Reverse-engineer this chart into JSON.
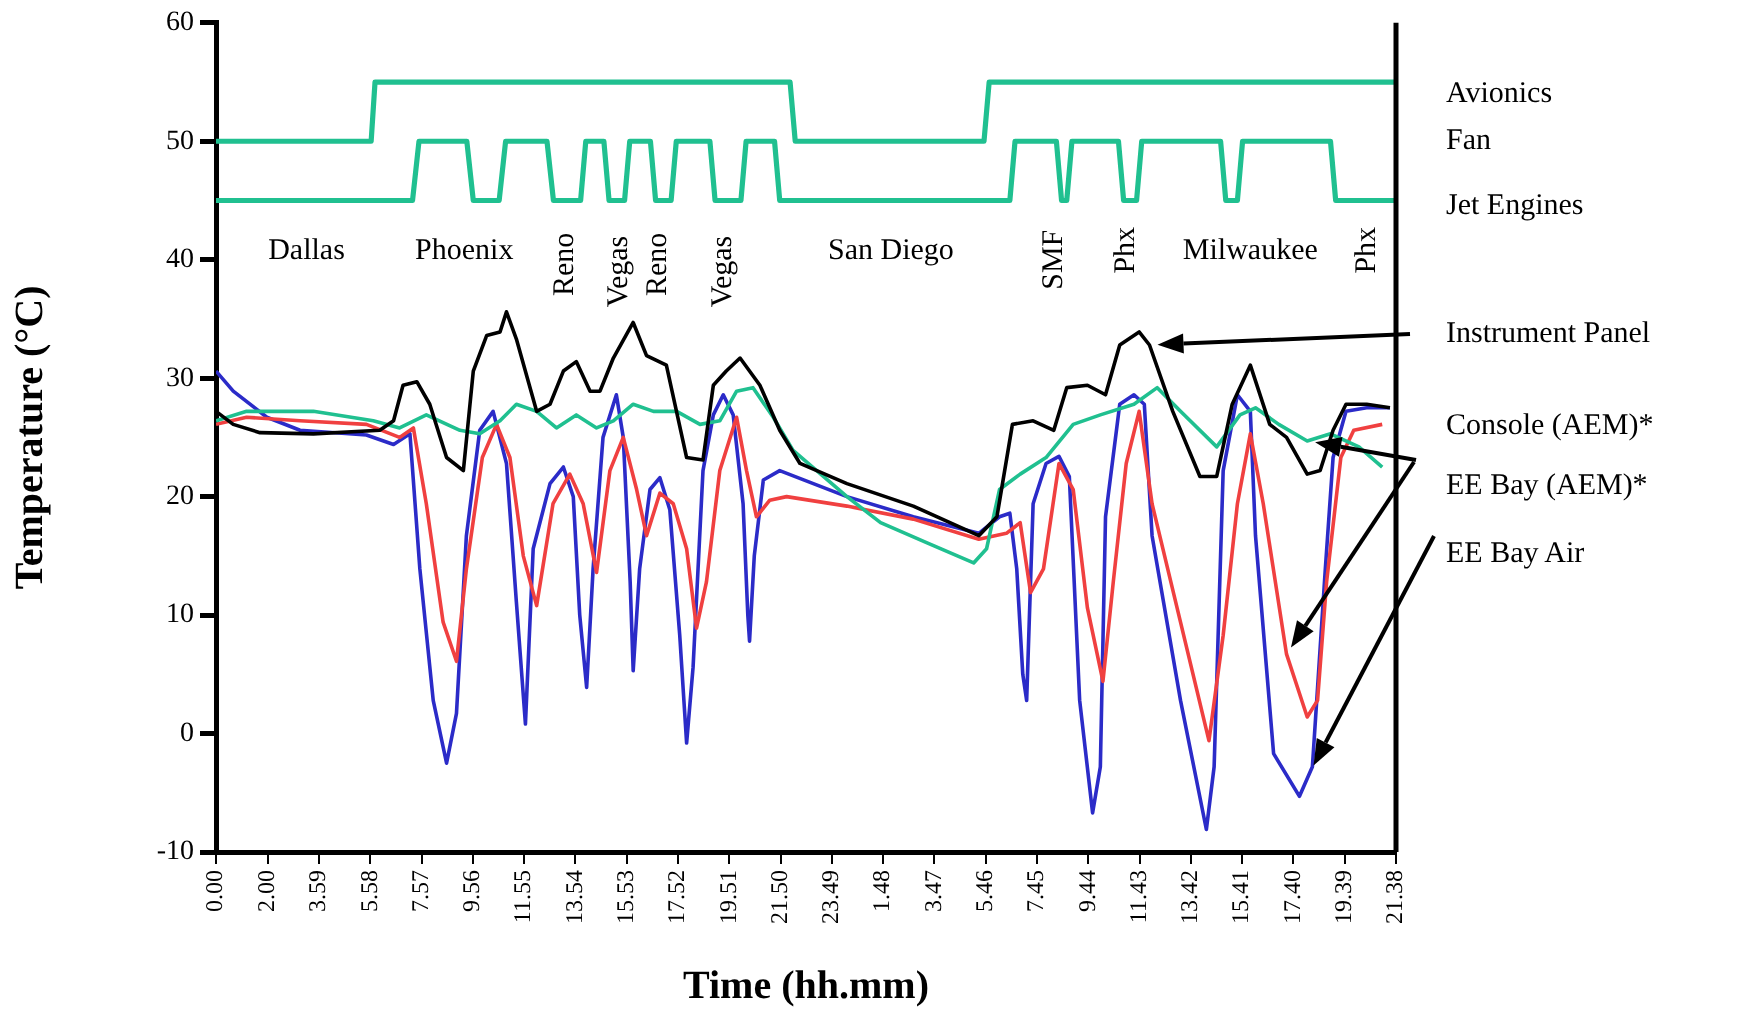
{
  "chart_data": {
    "type": "line",
    "xlabel": "Time (hh.mm)",
    "ylabel": "Temperature (°C)",
    "marker": "none",
    "xlim": [
      "2000-01-01T00:00",
      "2000-01-02T21:38"
    ],
    "ylim": [
      -10,
      60
    ],
    "yticks": [
      -10,
      0,
      10,
      20,
      30,
      40,
      50,
      60
    ],
    "xticks": [
      {
        "value": "2000-01-01T00:00",
        "label": "0.00"
      },
      {
        "value": "2000-01-01T02:00",
        "label": "2.00"
      },
      {
        "value": "2000-01-01T03:59",
        "label": "3.59"
      },
      {
        "value": "2000-01-01T05:58",
        "label": "5.58"
      },
      {
        "value": "2000-01-01T07:57",
        "label": "7.57"
      },
      {
        "value": "2000-01-01T09:56",
        "label": "9.56"
      },
      {
        "value": "2000-01-01T11:55",
        "label": "11.55"
      },
      {
        "value": "2000-01-01T13:54",
        "label": "13.54"
      },
      {
        "value": "2000-01-01T15:53",
        "label": "15.53"
      },
      {
        "value": "2000-01-01T17:52",
        "label": "17.52"
      },
      {
        "value": "2000-01-01T19:51",
        "label": "19.51"
      },
      {
        "value": "2000-01-01T21:50",
        "label": "21.50"
      },
      {
        "value": "2000-01-01T23:49",
        "label": "23.49"
      },
      {
        "value": "2000-01-02T01:48",
        "label": "1.48"
      },
      {
        "value": "2000-01-02T03:47",
        "label": "3.47"
      },
      {
        "value": "2000-01-02T05:46",
        "label": "5.46"
      },
      {
        "value": "2000-01-02T07:45",
        "label": "7.45"
      },
      {
        "value": "2000-01-02T09:44",
        "label": "9.44"
      },
      {
        "value": "2000-01-02T11:43",
        "label": "11.43"
      },
      {
        "value": "2000-01-02T13:42",
        "label": "13.42"
      },
      {
        "value": "2000-01-02T15:41",
        "label": "15.41"
      },
      {
        "value": "2000-01-02T17:40",
        "label": "17.40"
      },
      {
        "value": "2000-01-02T19:39",
        "label": "19.39"
      },
      {
        "value": "2000-01-02T21:38",
        "label": "21.38"
      }
    ],
    "series": [
      {
        "type": "line",
        "color": "#20c090",
        "x": [
          "2000-01-01T00:00",
          "2000-01-01T06:00",
          "2000-01-01T06:09",
          "2000-01-01T22:12",
          "2000-01-01T22:24",
          "2000-01-02T05:42",
          "2000-01-02T05:54",
          "2000-01-02T21:38"
        ],
        "values": [
          50,
          50,
          55,
          55,
          50,
          50,
          55,
          55
        ]
      },
      {
        "type": "line",
        "color": "#20c090",
        "x": [
          "2000-01-01T00:00",
          "2000-01-01T07:36",
          "2000-01-01T07:51",
          "2000-01-01T09:42",
          "2000-01-01T09:57",
          "2000-01-01T10:57",
          "2000-01-01T11:12",
          "2000-01-01T12:48",
          "2000-01-01T13:03",
          "2000-01-01T14:06",
          "2000-01-01T14:18",
          "2000-01-01T15:00",
          "2000-01-01T15:12",
          "2000-01-01T15:48",
          "2000-01-01T16:00",
          "2000-01-01T16:48",
          "2000-01-01T17:00",
          "2000-01-01T17:36",
          "2000-01-01T17:48",
          "2000-01-01T19:06",
          "2000-01-01T19:18",
          "2000-01-01T20:18",
          "2000-01-01T20:30",
          "2000-01-01T21:36",
          "2000-01-01T21:48",
          "2000-01-02T06:42",
          "2000-01-02T06:54",
          "2000-01-02T08:30",
          "2000-01-02T08:42",
          "2000-01-02T08:54",
          "2000-01-02T09:06",
          "2000-01-02T10:54",
          "2000-01-02T11:06",
          "2000-01-02T11:36",
          "2000-01-02T11:48",
          "2000-01-02T14:51",
          "2000-01-02T15:03",
          "2000-01-02T15:30",
          "2000-01-02T15:42",
          "2000-01-02T19:06",
          "2000-01-02T19:18",
          "2000-01-02T21:38"
        ],
        "values": [
          45,
          45,
          50,
          50,
          45,
          45,
          50,
          50,
          45,
          45,
          50,
          50,
          45,
          45,
          50,
          50,
          45,
          45,
          50,
          50,
          45,
          45,
          50,
          50,
          45,
          45,
          50,
          50,
          45,
          45,
          50,
          50,
          45,
          45,
          50,
          50,
          45,
          45,
          50,
          50,
          45,
          45
        ]
      },
      {
        "name": "Instrument Panel",
        "color": "#000000",
        "x": [
          "2000-01-01T00:00",
          "2000-01-01T00:40",
          "2000-01-01T01:42",
          "2000-01-01T03:46",
          "2000-01-01T06:20",
          "2000-01-01T06:52",
          "2000-01-01T07:14",
          "2000-01-01T07:46",
          "2000-01-01T08:16",
          "2000-01-01T08:55",
          "2000-01-01T09:34",
          "2000-01-01T09:57",
          "2000-01-01T10:28",
          "2000-01-01T10:59",
          "2000-01-01T11:14",
          "2000-01-01T11:37",
          "2000-01-01T12:24",
          "2000-01-01T12:55",
          "2000-01-01T13:26",
          "2000-01-01T13:56",
          "2000-01-01T14:28",
          "2000-01-01T14:51",
          "2000-01-01T15:22",
          "2000-01-01T16:08",
          "2000-01-01T16:39",
          "2000-01-01T17:25",
          "2000-01-01T18:12",
          "2000-01-01T18:50",
          "2000-01-01T19:14",
          "2000-01-01T19:44",
          "2000-01-01T20:16",
          "2000-01-01T21:02",
          "2000-01-01T21:48",
          "2000-01-01T22:35",
          "2000-01-02T00:24",
          "2000-01-02T02:58",
          "2000-01-02T05:30",
          "2000-01-02T06:12",
          "2000-01-02T06:48",
          "2000-01-02T07:36",
          "2000-01-02T08:24",
          "2000-01-02T08:54",
          "2000-01-02T09:42",
          "2000-01-02T10:24",
          "2000-01-02T10:57",
          "2000-01-02T11:42",
          "2000-01-02T12:06",
          "2000-01-02T13:00",
          "2000-01-02T14:03",
          "2000-01-02T14:42",
          "2000-01-02T15:18",
          "2000-01-02T16:00",
          "2000-01-02T16:45",
          "2000-01-02T17:24",
          "2000-01-02T18:12",
          "2000-01-02T18:42",
          "2000-01-02T19:12",
          "2000-01-02T19:42",
          "2000-01-02T20:30",
          "2000-01-02T21:24"
        ],
        "values": [
          27.2,
          26.1,
          25.4,
          25.3,
          25.6,
          26.4,
          29.4,
          29.7,
          27.8,
          23.3,
          22.2,
          30.6,
          33.6,
          33.9,
          35.6,
          33.3,
          27.2,
          27.8,
          30.6,
          31.4,
          28.9,
          28.9,
          31.7,
          34.7,
          31.9,
          31.1,
          23.3,
          23.1,
          29.4,
          30.6,
          31.7,
          29.4,
          25.6,
          22.8,
          21.1,
          19.2,
          16.7,
          18.3,
          26.1,
          26.4,
          25.6,
          29.2,
          29.4,
          28.6,
          32.8,
          33.9,
          32.8,
          27.2,
          21.7,
          21.7,
          27.8,
          31.1,
          26.1,
          25,
          21.9,
          22.2,
          25.6,
          27.8,
          27.8,
          27.5
        ]
      },
      {
        "name": "Console (AEM)*",
        "color": "#20c090",
        "x": [
          "2000-01-01T00:00",
          "2000-01-01T01:11",
          "2000-01-01T03:46",
          "2000-01-01T06:05",
          "2000-01-01T07:06",
          "2000-01-01T08:08",
          "2000-01-01T09:26",
          "2000-01-01T10:12",
          "2000-01-01T10:59",
          "2000-01-01T11:37",
          "2000-01-01T12:24",
          "2000-01-01T13:10",
          "2000-01-01T13:56",
          "2000-01-01T14:43",
          "2000-01-01T15:22",
          "2000-01-01T16:08",
          "2000-01-01T16:55",
          "2000-01-01T17:49",
          "2000-01-01T18:43",
          "2000-01-01T19:29",
          "2000-01-01T20:08",
          "2000-01-01T20:46",
          "2000-01-01T21:33",
          "2000-01-01T22:19",
          "2000-01-02T00:24",
          "2000-01-02T01:42",
          "2000-01-02T03:30",
          "2000-01-02T05:18",
          "2000-01-02T05:48",
          "2000-01-02T06:18",
          "2000-01-02T07:06",
          "2000-01-02T08:06",
          "2000-01-02T09:09",
          "2000-01-02T10:12",
          "2000-01-02T11:30",
          "2000-01-02T12:24",
          "2000-01-02T13:18",
          "2000-01-02T14:42",
          "2000-01-02T15:36",
          "2000-01-02T16:12",
          "2000-01-02T17:06",
          "2000-01-02T18:12",
          "2000-01-02T19:06",
          "2000-01-02T20:12",
          "2000-01-02T21:06"
        ],
        "values": [
          26.4,
          27.2,
          27.2,
          26.4,
          25.8,
          26.9,
          25.6,
          25.3,
          26.4,
          27.8,
          27.2,
          25.8,
          26.9,
          25.8,
          26.4,
          27.8,
          27.2,
          27.2,
          26.1,
          26.4,
          28.9,
          29.2,
          26.7,
          23.9,
          20,
          17.8,
          16.1,
          14.4,
          15.6,
          20.6,
          21.9,
          23.3,
          26.1,
          26.9,
          27.8,
          29.2,
          27.2,
          24.2,
          26.9,
          27.5,
          26.1,
          24.7,
          25.3,
          24.2,
          22.5
        ]
      },
      {
        "name": "EE Bay (AEM)*",
        "color": "#f04040",
        "x": [
          "2000-01-01T00:00",
          "2000-01-01T01:11",
          "2000-01-01T03:15",
          "2000-01-01T05:49",
          "2000-01-01T07:06",
          "2000-01-01T07:38",
          "2000-01-01T08:08",
          "2000-01-01T08:47",
          "2000-01-01T09:18",
          "2000-01-01T09:41",
          "2000-01-01T10:18",
          "2000-01-01T10:51",
          "2000-01-01T11:22",
          "2000-01-01T11:53",
          "2000-01-01T12:24",
          "2000-01-01T13:02",
          "2000-01-01T13:41",
          "2000-01-01T14:12",
          "2000-01-01T14:43",
          "2000-01-01T15:14",
          "2000-01-01T15:45",
          "2000-01-01T16:16",
          "2000-01-01T16:39",
          "2000-01-01T17:10",
          "2000-01-01T17:41",
          "2000-01-01T18:12",
          "2000-01-01T18:35",
          "2000-01-01T18:58",
          "2000-01-01T19:29",
          "2000-01-01T20:08",
          "2000-01-01T20:31",
          "2000-01-01T20:54",
          "2000-01-01T21:25",
          "2000-01-01T22:04",
          "2000-01-02T00:24",
          "2000-01-02T02:58",
          "2000-01-02T05:30",
          "2000-01-02T06:34",
          "2000-01-02T07:06",
          "2000-01-02T07:30",
          "2000-01-02T08:00",
          "2000-01-02T08:36",
          "2000-01-02T09:09",
          "2000-01-02T09:42",
          "2000-01-02T10:18",
          "2000-01-02T10:42",
          "2000-01-02T11:12",
          "2000-01-02T11:42",
          "2000-01-02T12:12",
          "2000-01-02T13:18",
          "2000-01-02T14:24",
          "2000-01-02T14:57",
          "2000-01-02T15:30",
          "2000-01-02T16:00",
          "2000-01-02T16:30",
          "2000-01-02T17:24",
          "2000-01-02T18:12",
          "2000-01-02T18:36",
          "2000-01-02T18:57",
          "2000-01-02T19:30",
          "2000-01-02T20:00",
          "2000-01-02T21:06"
        ],
        "values": [
          26.1,
          26.7,
          26.4,
          26.1,
          25,
          25.8,
          19.4,
          9.4,
          6.1,
          13.9,
          23.3,
          26.1,
          23.3,
          15,
          10.8,
          19.4,
          21.9,
          19.4,
          13.6,
          22.2,
          25,
          20.6,
          16.7,
          20.3,
          19.4,
          15.6,
          8.9,
          12.8,
          22.2,
          26.7,
          22.2,
          18.3,
          19.7,
          20,
          19.2,
          18.1,
          16.4,
          16.9,
          17.8,
          11.9,
          13.9,
          22.8,
          20.6,
          10.6,
          4.4,
          12.8,
          22.8,
          27.2,
          19.4,
          9.4,
          -0.6,
          8.3,
          19.4,
          25.3,
          19.4,
          6.7,
          1.4,
          2.8,
          12.8,
          23.3,
          25.6,
          26.1
        ]
      },
      {
        "name": "EE Bay Air",
        "color": "#2b2bc8",
        "x": [
          "2000-01-01T00:00",
          "2000-01-01T00:40",
          "2000-01-01T01:58",
          "2000-01-01T03:15",
          "2000-01-01T05:49",
          "2000-01-01T06:52",
          "2000-01-01T07:30",
          "2000-01-01T07:53",
          "2000-01-01T08:24",
          "2000-01-01T08:55",
          "2000-01-01T09:18",
          "2000-01-01T09:41",
          "2000-01-01T10:12",
          "2000-01-01T10:43",
          "2000-01-01T11:14",
          "2000-01-01T11:37",
          "2000-01-01T11:58",
          "2000-01-01T12:16",
          "2000-01-01T12:55",
          "2000-01-01T13:26",
          "2000-01-01T13:49",
          "2000-01-01T14:04",
          "2000-01-01T14:20",
          "2000-01-01T14:35",
          "2000-01-01T14:58",
          "2000-01-01T15:29",
          "2000-01-01T15:45",
          "2000-01-01T16:01",
          "2000-01-01T16:08",
          "2000-01-01T16:23",
          "2000-01-01T16:47",
          "2000-01-01T17:10",
          "2000-01-01T17:33",
          "2000-01-01T17:56",
          "2000-01-01T18:12",
          "2000-01-01T18:27",
          "2000-01-01T18:50",
          "2000-01-01T19:14",
          "2000-01-01T19:37",
          "2000-01-01T20:00",
          "2000-01-01T20:23",
          "2000-01-01T20:34",
          "2000-01-01T20:38",
          "2000-01-01T20:49",
          "2000-01-01T21:10",
          "2000-01-01T21:48",
          "2000-01-02T00:24",
          "2000-01-02T02:58",
          "2000-01-02T05:30",
          "2000-01-02T06:18",
          "2000-01-02T06:42",
          "2000-01-02T06:58",
          "2000-01-02T07:12",
          "2000-01-02T07:21",
          "2000-01-02T07:36",
          "2000-01-02T08:06",
          "2000-01-02T08:36",
          "2000-01-02T09:00",
          "2000-01-02T09:24",
          "2000-01-02T09:54",
          "2000-01-02T10:12",
          "2000-01-02T10:24",
          "2000-01-02T10:57",
          "2000-01-02T11:30",
          "2000-01-02T11:54",
          "2000-01-02T12:12",
          "2000-01-02T13:18",
          "2000-01-02T14:18",
          "2000-01-02T14:36",
          "2000-01-02T14:57",
          "2000-01-02T15:30",
          "2000-01-02T16:00",
          "2000-01-02T16:12",
          "2000-01-02T16:54",
          "2000-01-02T17:54",
          "2000-01-02T18:24",
          "2000-01-02T18:54",
          "2000-01-02T19:12",
          "2000-01-02T19:42",
          "2000-01-02T20:30",
          "2000-01-02T21:24"
        ],
        "values": [
          30.6,
          28.9,
          26.7,
          25.6,
          25.2,
          24.4,
          25.3,
          13.9,
          2.8,
          -2.5,
          1.7,
          16.7,
          25.6,
          27.2,
          22.8,
          11.1,
          0.8,
          15.6,
          21.1,
          22.5,
          20,
          10,
          3.9,
          13.9,
          25,
          28.6,
          25,
          12.8,
          5.3,
          13.9,
          20.6,
          21.6,
          18.9,
          8.3,
          -0.8,
          5.6,
          22.2,
          26.9,
          28.6,
          26.9,
          19.4,
          10,
          7.8,
          15,
          21.4,
          22.2,
          20,
          18.3,
          16.9,
          18.3,
          18.6,
          13.9,
          5,
          2.8,
          19.4,
          22.8,
          23.4,
          21.7,
          2.8,
          -6.7,
          -2.8,
          18.3,
          27.8,
          28.6,
          27.8,
          16.7,
          2.8,
          -8.1,
          -2.8,
          22.2,
          28.6,
          27.2,
          16.7,
          -1.7,
          -5.3,
          -2.8,
          13.9,
          23.3,
          27.2,
          27.5,
          27.5
        ]
      }
    ],
    "annotations": [
      "Dallas",
      "Phoenix",
      "Reno",
      "Vegas",
      "Reno",
      "Vegas",
      "San Diego",
      "SMF",
      "Phx",
      "Milwaukee",
      "Phx",
      "Avionics",
      "Fan",
      "Jet Engines"
    ]
  }
}
